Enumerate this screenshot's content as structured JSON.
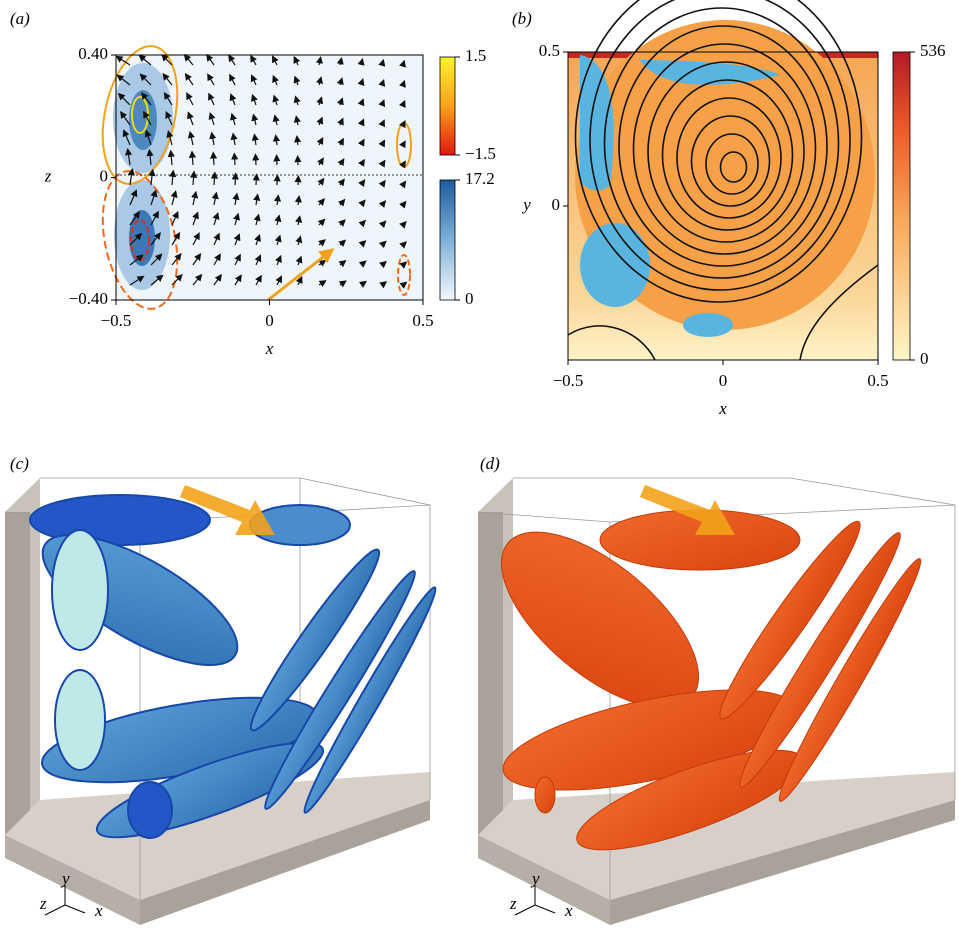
{
  "panels": [
    {
      "label": "(a)",
      "xlabel": "x",
      "ylabel": "z",
      "xlim": [
        -0.5,
        0.5
      ],
      "ylim": [
        -0.4,
        0.4
      ],
      "xticks": [
        {
          "value": -0.5,
          "label": "−0.5"
        },
        0,
        0.5
      ],
      "yticks": [
        {
          "value": 0.4,
          "label": "0.40"
        },
        0,
        {
          "value": -0.4,
          "label": "−0.40"
        }
      ],
      "colorbars": [
        {
          "lim": [
            -1.5,
            1.5
          ],
          "ticks": [
            1.5,
            {
              "value": -1.5,
              "label": "−1.5"
            }
          ]
        },
        {
          "lim": [
            0,
            17.2
          ],
          "ticks": [
            17.2,
            0
          ]
        }
      ]
    },
    {
      "label": "(b)",
      "xlabel": "x",
      "ylabel": "y",
      "xlim": [
        -0.5,
        0.5
      ],
      "ylim": [
        -0.5,
        0.5
      ],
      "xticks": [
        {
          "value": -0.5,
          "label": "−0.5"
        },
        0,
        0.5
      ],
      "yticks": [
        0.5,
        0
      ],
      "colorbars": [
        {
          "lim": [
            0,
            536
          ],
          "ticks": [
            536,
            0
          ]
        }
      ]
    },
    {
      "label": "(c)",
      "axes": [
        "y",
        "z",
        "x"
      ]
    },
    {
      "label": "(d)",
      "axes": [
        "y",
        "z",
        "x"
      ]
    }
  ]
}
